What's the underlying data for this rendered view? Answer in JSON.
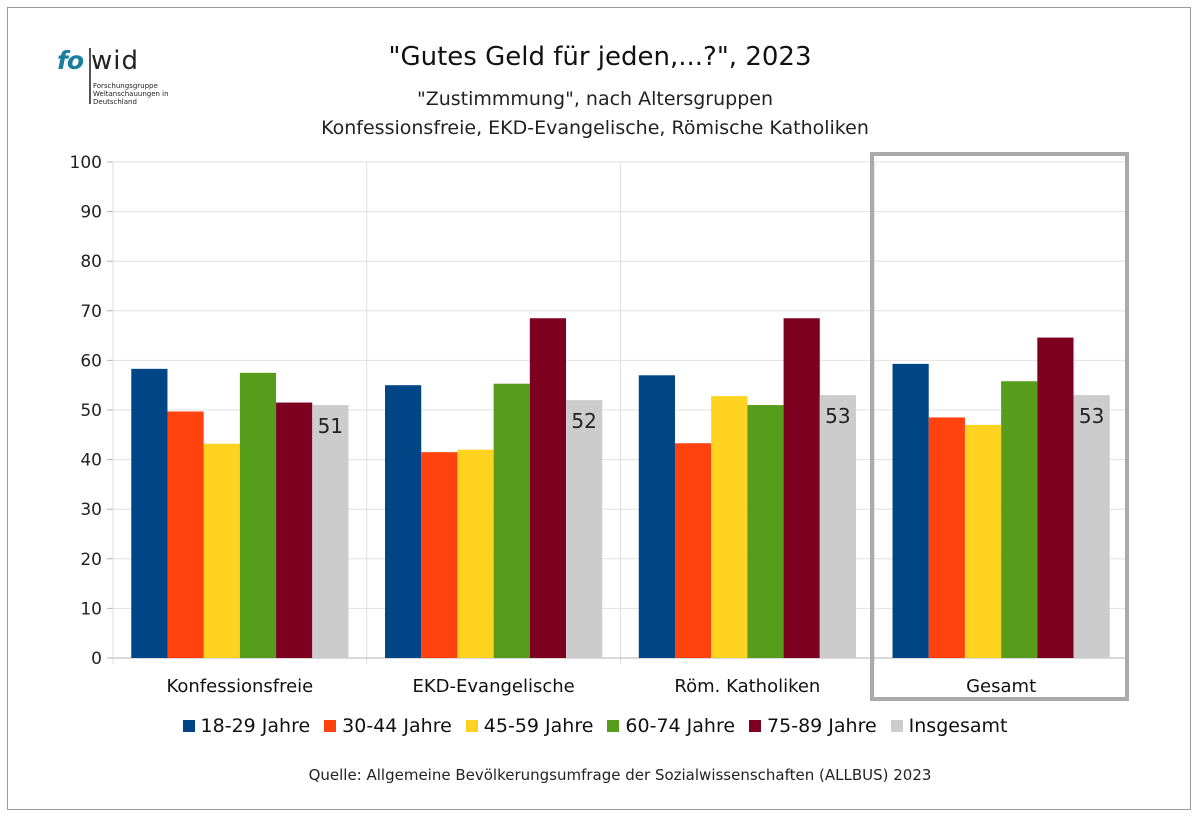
{
  "logo": {
    "part1": "fo",
    "part2": "wid",
    "tagline": "Forschungsgruppe Weltanschauungen in Deutschland"
  },
  "colors": {
    "series": [
      "#004586",
      "#ff420e",
      "#ffd320",
      "#579d1c",
      "#7e0021",
      "#cccccc"
    ],
    "highlight_box": "#aaaaaa",
    "grid": "#e0e0e0"
  },
  "legend_position": "bottom",
  "source": "Quelle: Allgemeine Bevölkerungsumfrage der Sozialwissenschaften (ALLBUS) 2023",
  "chart_data": {
    "type": "bar",
    "title": "\"Gutes Geld für jeden,...?\", 2023",
    "subtitle_line1": "\"Zustimmmung\", nach Altersgruppen",
    "subtitle_line2": "Konfessionsfreie, EKD-Evangelische, Römische Katholiken",
    "categories": [
      "Konfessionsfreie",
      "EKD-Evangelische",
      "Röm. Katholiken",
      "Gesamt"
    ],
    "ylim": [
      0,
      100
    ],
    "yticks": [
      0,
      10,
      20,
      30,
      40,
      50,
      60,
      70,
      80,
      90,
      100
    ],
    "grid": true,
    "highlighted_category": "Gesamt",
    "series": [
      {
        "name": "18-29 Jahre",
        "values": [
          58.3,
          55,
          57,
          59.3
        ]
      },
      {
        "name": "30-44 Jahre",
        "values": [
          49.7,
          41.5,
          43.3,
          48.5
        ]
      },
      {
        "name": "45-59 Jahre",
        "values": [
          43.2,
          42,
          52.8,
          47
        ]
      },
      {
        "name": "60-74 Jahre",
        "values": [
          57.5,
          55.3,
          51,
          55.8
        ]
      },
      {
        "name": "75-89 Jahre",
        "values": [
          51.5,
          68.5,
          68.5,
          64.6
        ]
      },
      {
        "name": "Insgesamt",
        "values": [
          51,
          52,
          53,
          53
        ]
      }
    ],
    "data_labels": {
      "series": "Insgesamt",
      "values": [
        "51",
        "52",
        "53",
        "53"
      ]
    }
  }
}
